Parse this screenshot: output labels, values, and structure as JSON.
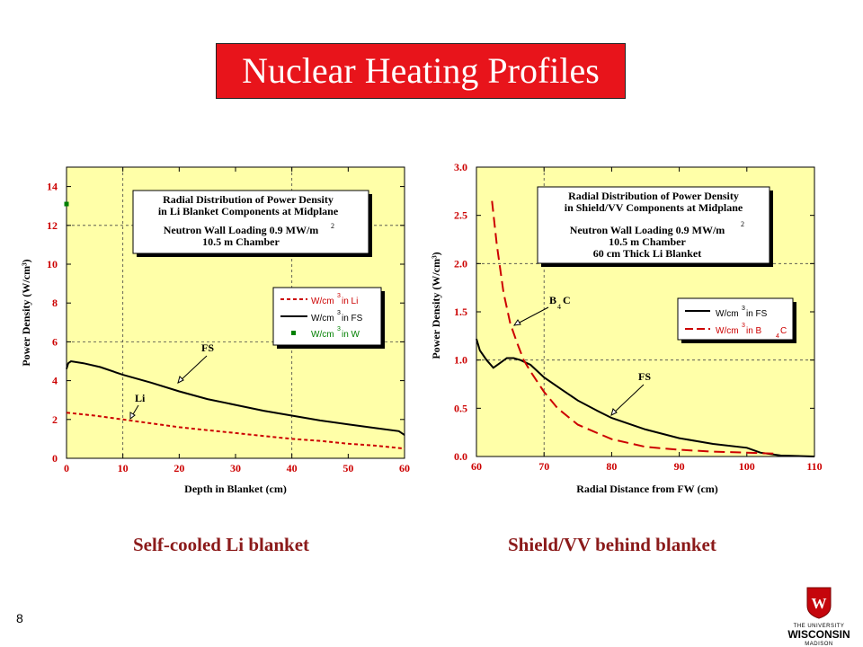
{
  "title": "Nuclear Heating Profiles",
  "page_number": "8",
  "captions": {
    "left": "Self-cooled Li blanket",
    "right": "Shield/VV behind blanket"
  },
  "logo": {
    "line1": "THE UNIVERSITY",
    "line2": "WISCONSIN",
    "line3": "MADISON",
    "crest_letter": "W"
  },
  "colors": {
    "title_bg": "#e8141b",
    "plot_bg": "#ffffa8",
    "caption": "#8b1a1a",
    "axis_label": "#cc0000",
    "series_li": "#cc0000",
    "series_fs": "#000000",
    "series_w": "#008000",
    "series_b4c": "#cc0000",
    "logo_red": "#c5050c"
  },
  "chart_data": [
    {
      "type": "line",
      "xlabel": "Depth in Blanket (cm)",
      "ylabel": "Power Density (W/cm³)",
      "xlim": [
        0,
        60
      ],
      "ylim": [
        0,
        15
      ],
      "xticks": [
        "0",
        "10",
        "20",
        "30",
        "40",
        "50",
        "60"
      ],
      "yticks": [
        "0",
        "2",
        "4",
        "6",
        "8",
        "10",
        "12",
        "14"
      ],
      "grid": "dashed lines at x=10,40 and y=6,12",
      "annotation_box": {
        "line1": "Radial Distribution of Power Density",
        "line2": "in Li Blanket Components at Midplane",
        "line3": "Neutron Wall Loading 0.9 MW/m",
        "line3_sup": "2",
        "line4": "10.5 m Chamber"
      },
      "legend": {
        "position": "right",
        "entries": [
          {
            "pre": "W/cm",
            "sup": "3",
            "post": " in Li"
          },
          {
            "pre": "W/cm",
            "sup": "3",
            "post": " in FS"
          },
          {
            "pre": "W/cm",
            "sup": "3",
            "post": " in W"
          }
        ]
      },
      "labels": {
        "fs": "FS",
        "li": "Li"
      },
      "series": [
        {
          "name": "W/cm3 in Li",
          "style": "dashed",
          "x": [
            0,
            5,
            10,
            15,
            20,
            25,
            30,
            35,
            40,
            45,
            50,
            55,
            60
          ],
          "y": [
            2.35,
            2.2,
            2.0,
            1.8,
            1.6,
            1.45,
            1.3,
            1.15,
            1.0,
            0.9,
            0.75,
            0.65,
            0.5
          ]
        },
        {
          "name": "W/cm3 in FS",
          "style": "solid",
          "x": [
            0,
            0.3,
            0.8,
            3,
            6,
            10,
            15,
            20,
            25,
            30,
            35,
            40,
            45,
            50,
            55,
            59,
            60
          ],
          "y": [
            4.6,
            4.9,
            5.0,
            4.9,
            4.7,
            4.3,
            3.9,
            3.45,
            3.05,
            2.75,
            2.45,
            2.2,
            1.95,
            1.75,
            1.55,
            1.4,
            1.2
          ]
        },
        {
          "name": "W/cm3 in W",
          "style": "marker",
          "x": [
            0
          ],
          "y": [
            13.1
          ]
        }
      ]
    },
    {
      "type": "line",
      "xlabel": "Radial Distance from FW (cm)",
      "ylabel": "Power Density (W/cm³)",
      "xlim": [
        60,
        110
      ],
      "ylim": [
        0,
        3
      ],
      "xticks": [
        "60",
        "70",
        "80",
        "90",
        "100",
        "110"
      ],
      "yticks": [
        "0.0",
        "0.5",
        "1.0",
        "1.5",
        "2.0",
        "2.5",
        "3.0"
      ],
      "grid": "dashed lines at x=70 and y=1.0,2.0",
      "annotation_box": {
        "line1": "Radial Distribution of Power Density",
        "line2": "in Shield/VV Components at Midplane",
        "line3": "Neutron Wall Loading 0.9 MW/m",
        "line3_sup": "2",
        "line4": "10.5 m Chamber",
        "line5": "60 cm Thick Li Blanket"
      },
      "legend": {
        "position": "right",
        "entries": [
          {
            "pre": "W/cm",
            "sup": "3",
            "post": " in FS"
          },
          {
            "pre": "W/cm",
            "sup": "3",
            "post": " in B",
            "sub": "4",
            "post2": "C"
          }
        ]
      },
      "labels": {
        "b4c_pre": "B",
        "b4c_sub": "4",
        "b4c_post": "C",
        "fs": "FS"
      },
      "series": [
        {
          "name": "W/cm3 in FS",
          "style": "solid",
          "x": [
            60,
            60.5,
            61.5,
            62.5,
            63.5,
            64.5,
            65.5,
            66.5,
            68,
            70,
            72.5,
            75,
            78,
            80,
            85,
            90,
            95,
            100,
            102,
            105,
            110
          ],
          "y": [
            1.22,
            1.1,
            1.0,
            0.92,
            0.97,
            1.02,
            1.02,
            1.0,
            0.95,
            0.82,
            0.7,
            0.58,
            0.47,
            0.4,
            0.28,
            0.19,
            0.13,
            0.09,
            0.04,
            0.01,
            0.0
          ]
        },
        {
          "name": "W/cm3 in B4C",
          "style": "dashed",
          "x": [
            62.3,
            63,
            64,
            65,
            66,
            67,
            68,
            70,
            72,
            75,
            80,
            85,
            90,
            95,
            100,
            104
          ],
          "y": [
            2.65,
            2.2,
            1.7,
            1.38,
            1.18,
            1.0,
            0.88,
            0.67,
            0.5,
            0.33,
            0.18,
            0.1,
            0.07,
            0.05,
            0.04,
            0.03
          ]
        }
      ]
    }
  ]
}
